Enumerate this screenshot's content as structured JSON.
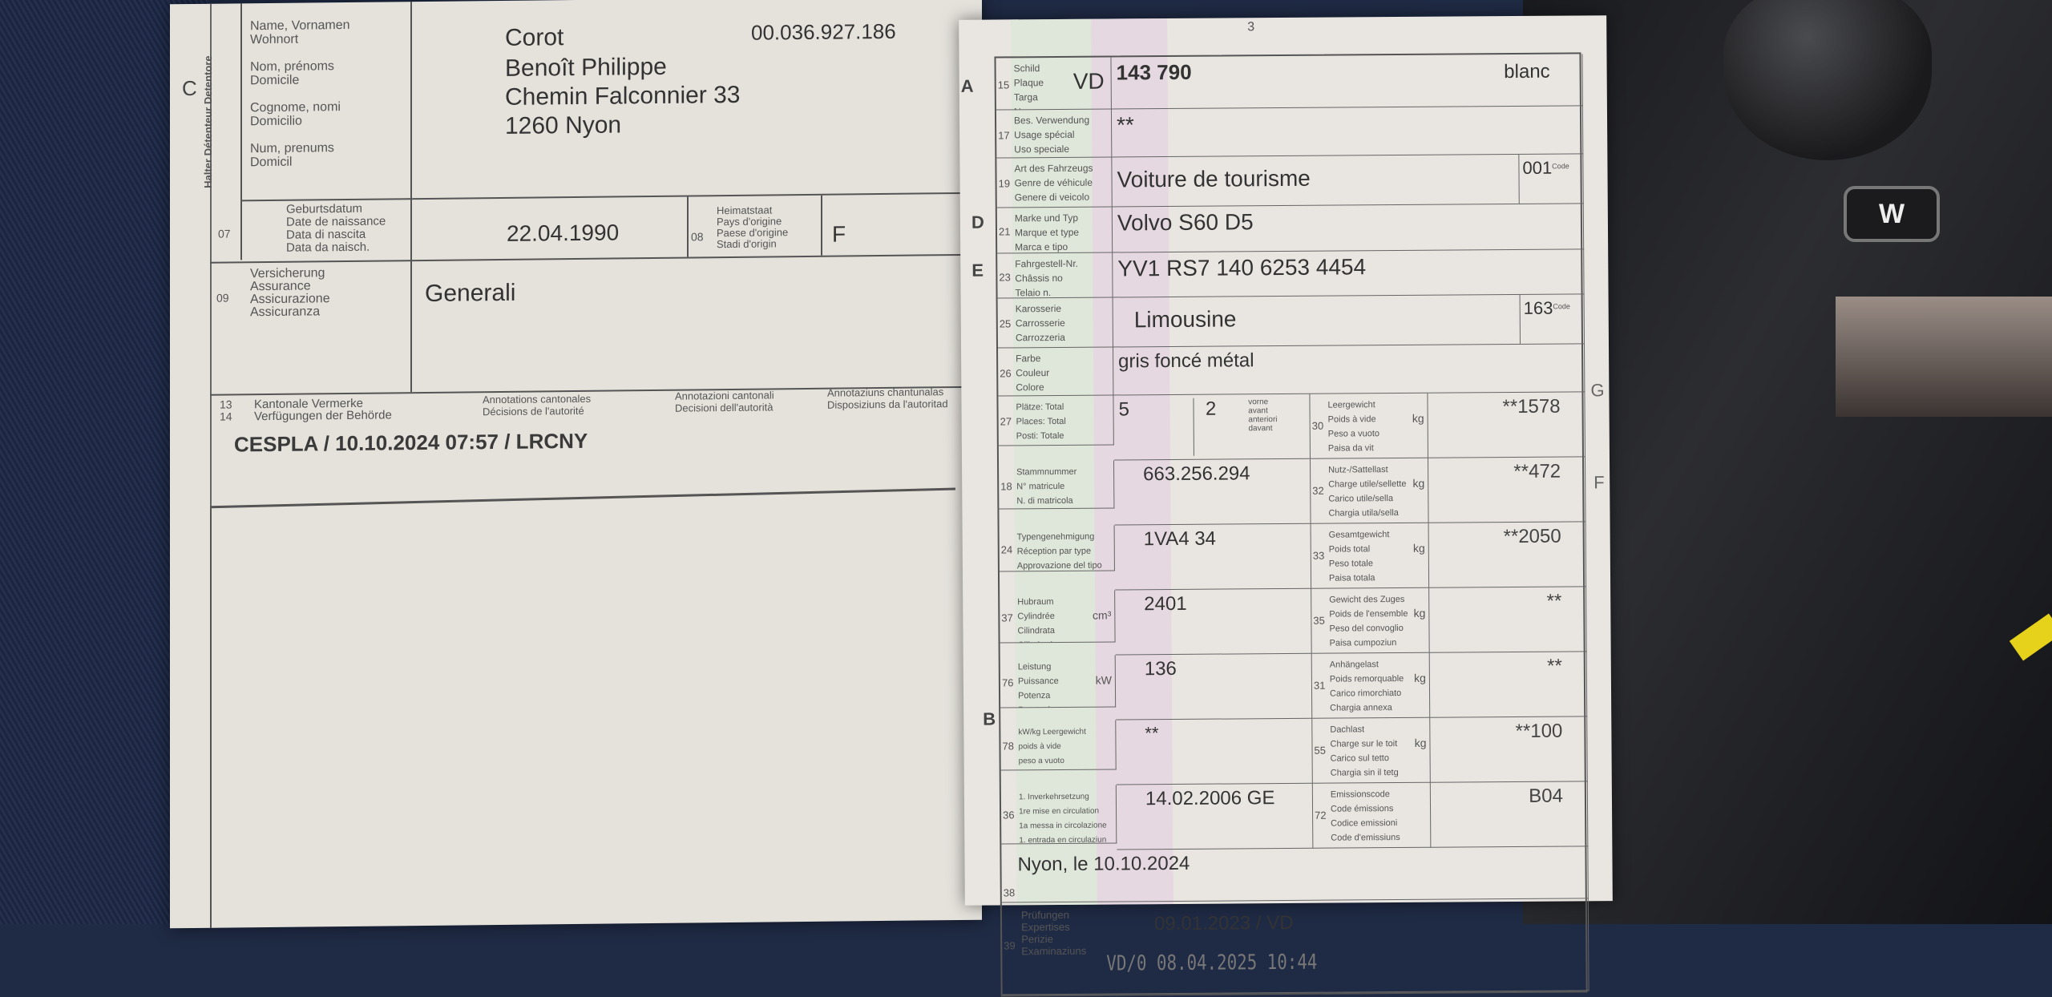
{
  "left_page": {
    "section_letter": "C",
    "holder_vertical": "Halter Détenteur Detentore",
    "holder_labels": "Name, Vornamen\nWohnort\n\nNom, prénoms\nDomicile\n\nCognome, nomi\nDomicilio\n\nNum, prenums\nDomicil",
    "document_number": "00.036.927.186",
    "surname": "Corot",
    "first_names": "Benoît Philippe",
    "street": "Chemin Falconnier 33",
    "city": "1260 Nyon",
    "birth": {
      "num": "07",
      "label": "Geburtsdatum\nDate de naissance\nData di nascita\nData da naisch.",
      "value": "22.04.1990"
    },
    "origin": {
      "num": "08",
      "label": "Heimatstaat\nPays d'origine\nPaese d'origine\nStadi d'origin",
      "value": "F"
    },
    "insurance": {
      "num": "09",
      "label": "Versicherung\nAssurance\nAssicurazione\nAssicuranza",
      "value": "Generali"
    },
    "annotations": {
      "num": "13\n14",
      "headers": [
        "Kantonale Vermerke\nVerfügungen der Behörde",
        "Annotations cantonales\nDécisions de l'autorité",
        "Annotazioni cantonali\nDecisioni dell'autorità",
        "Annotaziuns chantunalas\nDisposiziuns da l'autoritad"
      ],
      "value": "CESPLA / 10.10.2024 07:57 / LRCNY"
    }
  },
  "right_page": {
    "page_number": "3",
    "side_letters": {
      "A": "A",
      "D": "D",
      "E": "E",
      "B": "B",
      "G": "G",
      "F": "F"
    },
    "rows": [
      {
        "num": "15",
        "label": "Schild\nPlaque\nTarga\nNumer",
        "canton": "VD",
        "value": "143 790",
        "extra": "blanc"
      },
      {
        "num": "17",
        "label": "Bes. Verwendung\nUsage spécial\nUso speciale\nDiever spezial",
        "value": "**"
      },
      {
        "num": "19",
        "label": "Art des Fahrzeugs\nGenre de véhicule\nGenere di veicolo\nGener dal vehichel",
        "value": "Voiture de tourisme",
        "code": "001",
        "code_label": "Code"
      },
      {
        "num": "21",
        "label": "Marke und Typ\nMarque et type\nMarca e tipo\nMarca e tip",
        "value": "Volvo S60 D5"
      },
      {
        "num": "23",
        "label": "Fahrgestell-Nr.\nChâssis no\nTelaio n.\nSchassis nr.",
        "value": "YV1 RS7 140 6253 4454"
      },
      {
        "num": "25",
        "label": "Karosserie\nCarrosserie\nCarrozzeria\nCarossaria",
        "value": "Limousine",
        "code": "163",
        "code_label": "Code"
      },
      {
        "num": "26",
        "label": "Farbe\nCouleur\nColore\nColur",
        "value": "gris foncé métal"
      }
    ],
    "pairs": [
      {
        "num": "27",
        "label": "Plätze: Total\nPlaces: Total\nPosti: Totale\nPlazs: Total",
        "value": "5",
        "value2": "2",
        "value2_label": "vorne\navant\nanteriori\ndavant",
        "rnum": "30",
        "rlabel": "Leergewicht\nPoids à vide\nPeso a vuoto\nPaisa da vit",
        "unit": "kg",
        "rvalue": "**1578"
      },
      {
        "num": "18",
        "label": "Stammnummer\nN° matricule\nN. di matricola\nNr. da matricla",
        "value": "663.256.294",
        "rnum": "32",
        "rlabel": "Nutz-/Sattellast\nCharge utile/sellette\nCarico utile/sella\nChargia utila/sella",
        "unit": "kg",
        "rvalue": "**472"
      },
      {
        "num": "24",
        "label": "Typengenehmigung\nRéception par type\nApprovazione del tipo\nApprovaziun dal tip",
        "value": "1VA4 34",
        "rnum": "33",
        "rlabel": "Gesamtgewicht\nPoids total\nPeso totale\nPaisa totala",
        "unit": "kg",
        "rvalue": "**2050"
      },
      {
        "num": "37",
        "label": "Hubraum\nCylindrée\nCilindrata\nCilindrada",
        "unit_left": "cm³",
        "value": "2401",
        "rnum": "35",
        "rlabel": "Gewicht des Zuges\nPoids de l'ensemble\nPeso del convoglio\nPaisa cumpoziun",
        "unit": "kg",
        "rvalue": "**"
      },
      {
        "num": "76",
        "label": "Leistung\nPuissance\nPotenza\nPrestaziun",
        "unit_left": "kW",
        "value": "136",
        "rnum": "31",
        "rlabel": "Anhängelast\nPoids remorquable\nCarico rimorchiato\nChargia annexa",
        "unit": "kg",
        "rvalue": "**"
      },
      {
        "num": "78",
        "label": "kW/kg  Leergewicht\npoids à vide\npeso a vuoto\npaisa da vit",
        "value": "**",
        "rnum": "55",
        "rlabel": "Dachlast\nCharge sur le toit\nCarico sul tetto\nChargia sin il tetg",
        "unit": "kg",
        "rvalue": "**100"
      },
      {
        "num": "36",
        "label": "1. Inverkehrsetzung\n1re mise en circulation\n1a messa in circolazione\n1. entrada en circulaziun",
        "value": "14.02.2006 GE",
        "rnum": "72",
        "rlabel": "Emissionscode\nCode émissions\nCodice emissioni\nCode d'emissiuns",
        "unit": "",
        "rvalue": "B04"
      }
    ],
    "place_date": {
      "num": "38",
      "value": "Nyon, le 10.10.2024"
    },
    "inspections": {
      "num": "39",
      "label": "Prüfungen\nExpertises\nPerizie\nExaminaziuns",
      "value": "09.01.2023 / VD",
      "stamp": "VD/0 08.04.2025 10:44"
    }
  }
}
